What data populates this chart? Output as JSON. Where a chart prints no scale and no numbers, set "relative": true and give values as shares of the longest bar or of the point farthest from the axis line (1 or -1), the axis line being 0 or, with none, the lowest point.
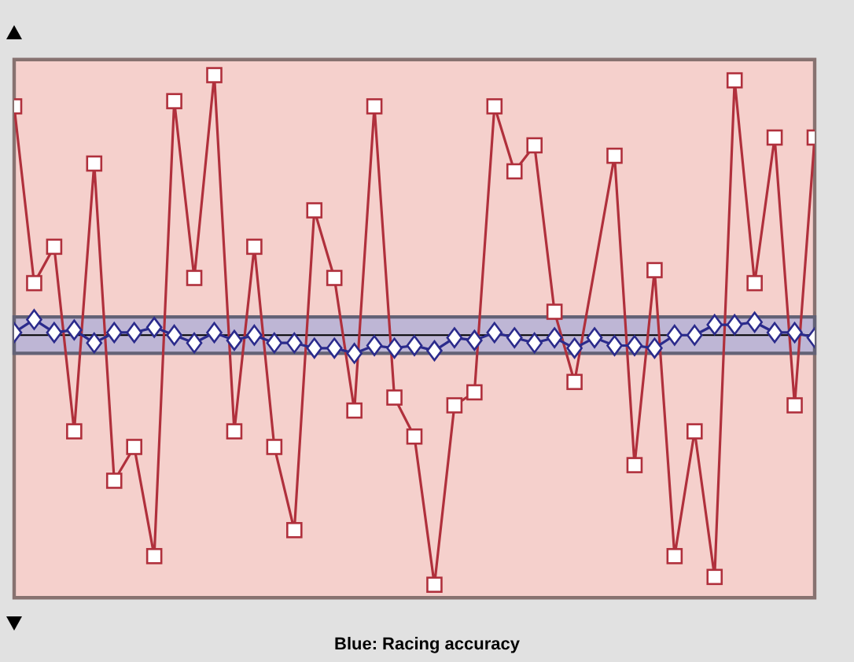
{
  "chart_data": {
    "type": "line",
    "title": "Blue: Racing accuracy",
    "relative": true,
    "categories": [
      null,
      null,
      null,
      null,
      null,
      null,
      null,
      null,
      null,
      null,
      null,
      null,
      null,
      null,
      null,
      null,
      null,
      null,
      null,
      null,
      null,
      null,
      null,
      null,
      null,
      null,
      null,
      null,
      null,
      null,
      null,
      null,
      null,
      null,
      null,
      null,
      null,
      null,
      null,
      null,
      null
    ],
    "series": [
      {
        "color": "#b0303c",
        "marker": "square",
        "values": [
          0.88,
          0.2,
          0.34,
          -0.37,
          0.66,
          -0.56,
          -0.43,
          -0.85,
          0.9,
          0.22,
          1.0,
          -0.37,
          0.34,
          -0.43,
          -0.75,
          0.48,
          0.22,
          -0.29,
          0.88,
          -0.24,
          -0.39,
          -0.96,
          -0.27,
          -0.22,
          0.88,
          0.63,
          0.73,
          0.09,
          -0.18,
          null,
          0.69,
          -0.5,
          0.25,
          -0.85,
          -0.37,
          -0.93,
          0.98,
          0.2,
          0.76,
          -0.27,
          0.76
        ]
      },
      {
        "color": "#2b2b8c",
        "marker": "diamond",
        "values": [
          0.01,
          0.06,
          0.01,
          0.02,
          -0.03,
          0.01,
          0.01,
          0.03,
          0.0,
          -0.03,
          0.01,
          -0.02,
          0.0,
          -0.03,
          -0.03,
          -0.05,
          -0.05,
          -0.07,
          -0.04,
          -0.05,
          -0.04,
          -0.06,
          -0.01,
          -0.02,
          0.01,
          -0.01,
          -0.03,
          -0.01,
          -0.05,
          -0.01,
          -0.04,
          -0.04,
          -0.05,
          0.0,
          0.0,
          0.04,
          0.04,
          0.05,
          0.01,
          0.01,
          -0.01
        ]
      }
    ],
    "bands": [
      {
        "axis": "y",
        "from": -1.01,
        "to": 1.06,
        "color": "#f5d0cc"
      },
      {
        "axis": "y",
        "from": -0.07,
        "to": 0.07,
        "color": "#b4b2d6"
      }
    ]
  }
}
